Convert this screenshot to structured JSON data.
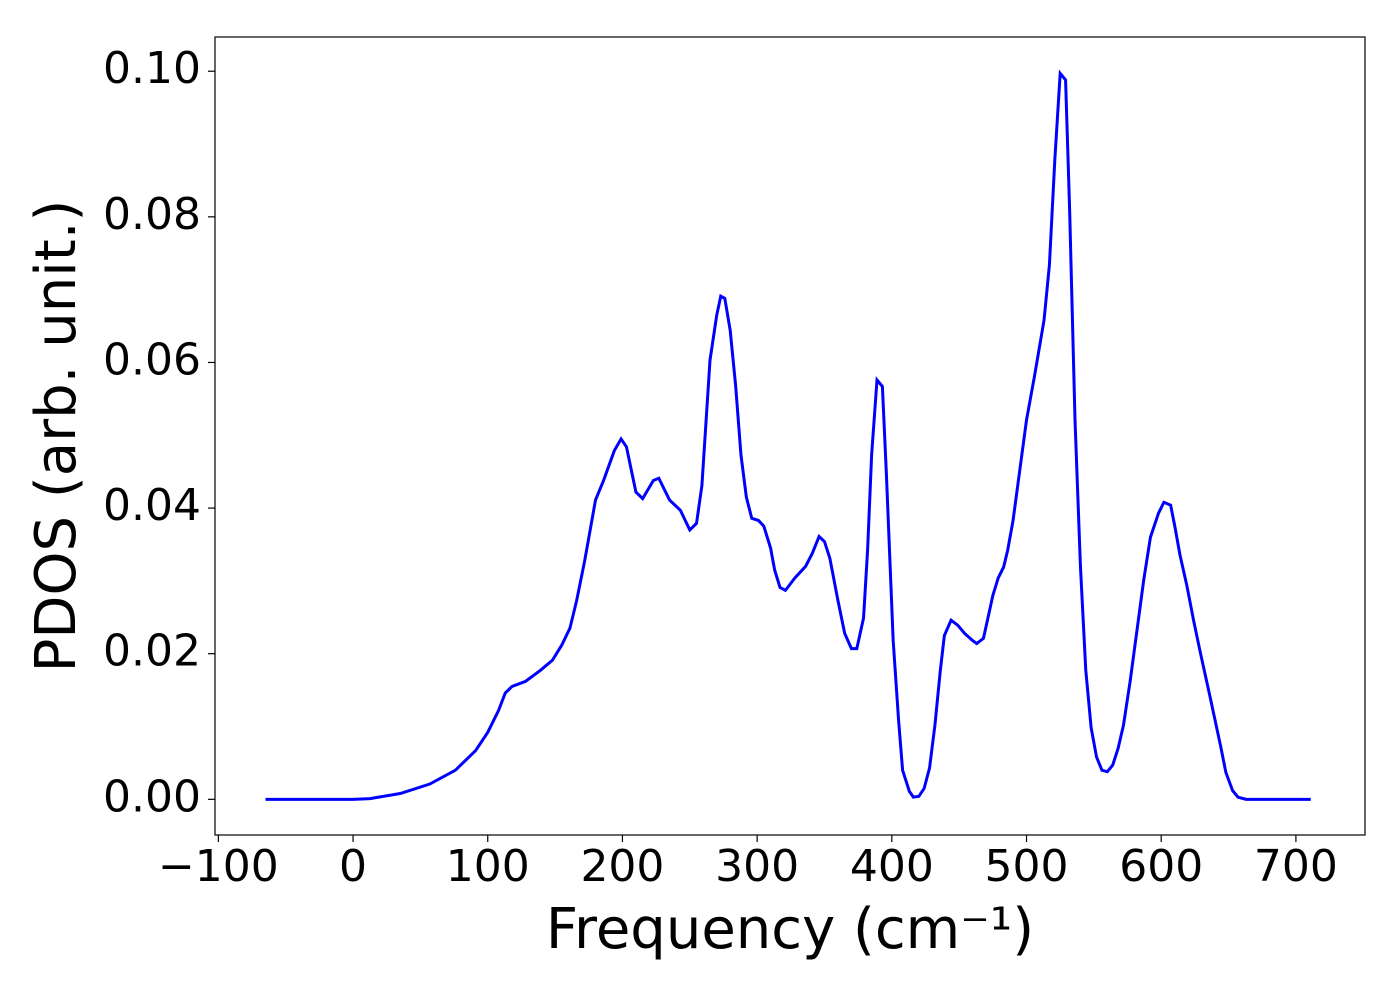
{
  "chart_data": {
    "type": "line",
    "xlabel": "Frequency (cm⁻¹)",
    "ylabel": "PDOS (arb. unit.)",
    "x": [
      -65,
      0,
      12.6,
      35,
      57,
      76,
      91,
      100,
      108,
      113,
      118,
      128,
      139,
      148,
      155,
      161,
      166,
      172,
      180,
      186,
      194,
      199,
      203,
      210,
      215,
      223,
      227,
      235,
      243,
      250,
      255,
      259,
      265,
      270,
      273,
      276,
      280,
      284,
      288,
      292,
      296,
      301,
      305,
      310,
      313,
      317,
      321,
      328,
      336,
      341,
      346,
      350,
      354,
      360,
      365,
      370,
      374,
      379,
      382,
      385,
      389,
      393,
      396,
      401,
      405,
      408,
      413,
      416,
      420,
      424,
      428,
      432,
      436,
      439,
      444,
      449,
      454,
      460,
      463,
      468,
      471,
      475,
      479,
      483,
      486,
      490,
      495,
      500,
      506,
      513,
      517,
      521,
      525,
      529,
      532,
      536,
      540,
      544,
      548,
      552,
      556,
      560,
      564,
      568,
      572,
      577,
      582,
      587,
      592,
      598,
      602,
      607,
      610,
      614,
      619,
      624,
      629,
      636,
      644,
      648,
      653,
      657,
      663,
      711
    ],
    "series": [
      {
        "name": "PDOS",
        "color": "#0000ff",
        "values": [
          0,
          0,
          0.0001,
          0.0008,
          0.0021,
          0.004,
          0.0067,
          0.0092,
          0.0122,
          0.0146,
          0.0155,
          0.0162,
          0.0177,
          0.0191,
          0.0212,
          0.0235,
          0.0273,
          0.0328,
          0.0411,
          0.0438,
          0.0479,
          0.0495,
          0.0484,
          0.0422,
          0.0413,
          0.0438,
          0.0441,
          0.0411,
          0.0397,
          0.037,
          0.0379,
          0.0431,
          0.0603,
          0.0665,
          0.0691,
          0.0688,
          0.0644,
          0.0569,
          0.0473,
          0.0415,
          0.0386,
          0.0383,
          0.0375,
          0.0345,
          0.0315,
          0.0291,
          0.0287,
          0.0304,
          0.032,
          0.0338,
          0.0361,
          0.0354,
          0.0331,
          0.0273,
          0.0228,
          0.0207,
          0.0207,
          0.0249,
          0.0342,
          0.0473,
          0.0576,
          0.0567,
          0.0445,
          0.0218,
          0.0109,
          0.004,
          0.0011,
          0.0003,
          0.0004,
          0.0015,
          0.0043,
          0.0102,
          0.0177,
          0.0225,
          0.0246,
          0.0239,
          0.0228,
          0.0218,
          0.0214,
          0.0221,
          0.0246,
          0.028,
          0.0304,
          0.0319,
          0.0342,
          0.0383,
          0.0452,
          0.0521,
          0.0582,
          0.0658,
          0.0734,
          0.0878,
          0.0997,
          0.0988,
          0.081,
          0.0521,
          0.0321,
          0.0177,
          0.0098,
          0.0058,
          0.004,
          0.0038,
          0.0047,
          0.007,
          0.0102,
          0.0163,
          0.0232,
          0.0301,
          0.036,
          0.0393,
          0.0408,
          0.0404,
          0.0376,
          0.0335,
          0.0294,
          0.0246,
          0.0202,
          0.0143,
          0.0074,
          0.0037,
          0.0012,
          0.0003,
          0,
          0
        ]
      }
    ],
    "xlim": [
      -102.5,
      751.3
    ],
    "ylim": [
      -0.0049,
      0.1047
    ],
    "xticks": [
      {
        "value": -100,
        "label": "−100"
      },
      0,
      100,
      200,
      300,
      400,
      500,
      600,
      700
    ],
    "yticks": [
      {
        "value": 0,
        "label": "0.00"
      },
      {
        "value": 0.02,
        "label": "0.02"
      },
      {
        "value": 0.04,
        "label": "0.04"
      },
      {
        "value": 0.06,
        "label": "0.06"
      },
      {
        "value": 0.08,
        "label": "0.08"
      },
      {
        "value": 0.1,
        "label": "0.10"
      }
    ],
    "grid": false
  }
}
